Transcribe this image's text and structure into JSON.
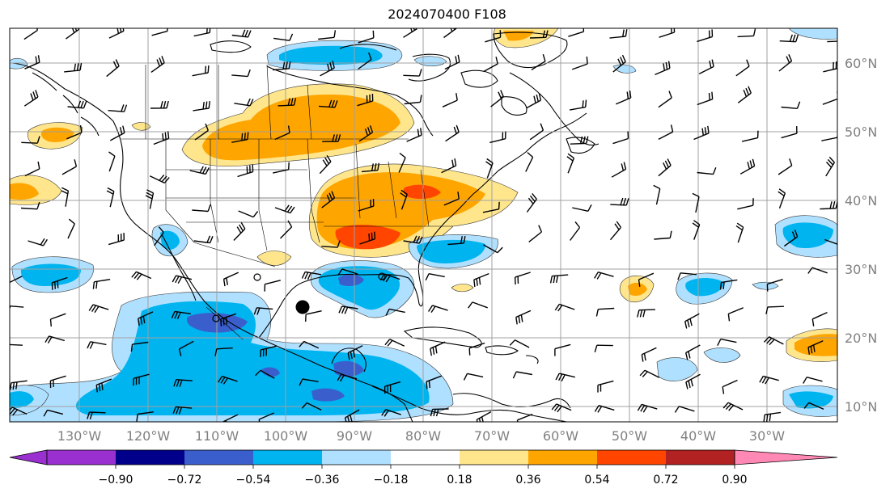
{
  "title": "2024070400 F108",
  "map": {
    "lon_labels": [
      "130°W",
      "120°W",
      "110°W",
      "100°W",
      "90°W",
      "80°W",
      "70°W",
      "60°W",
      "50°W",
      "40°W",
      "30°W"
    ],
    "lat_labels": [
      "60°N",
      "50°N",
      "40°N",
      "30°N",
      "20°N",
      "10°N"
    ],
    "colors": {
      "ocean": "#ffffff",
      "coast": "#000000",
      "grid": "#a0a0a0",
      "barb": "#000000"
    },
    "storm_marker": "filled-circle"
  },
  "colorbar": {
    "tick_labels": [
      "−0.90",
      "−0.72",
      "−0.54",
      "−0.36",
      "−0.18",
      "0.18",
      "0.36",
      "0.54",
      "0.72",
      "0.90"
    ],
    "colors": [
      "#9b30d0",
      "#00008b",
      "#3a5fcd",
      "#00b4f0",
      "#b0e0ff",
      "#ffffff",
      "#ffe68c",
      "#ffa500",
      "#ff4500",
      "#b22222",
      "#ff88b4"
    ]
  }
}
